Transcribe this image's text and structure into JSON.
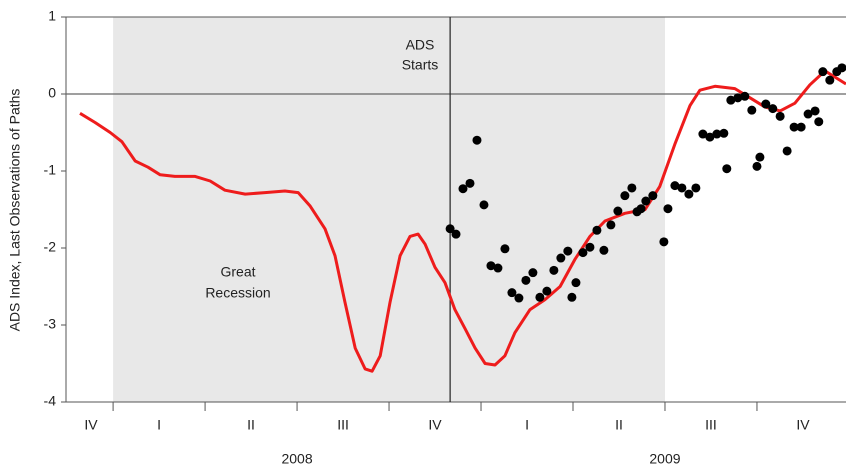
{
  "chart_data": {
    "type": "line",
    "y_label": "ADS Index, Last Observations of Paths",
    "annotations": [
      [
        "ADS",
        "Starts"
      ],
      [
        "Great",
        "Recession"
      ]
    ],
    "xlim": [
      2007.872,
      2009.992
    ],
    "ylim": [
      -4,
      1
    ],
    "yticks": [
      -4,
      -3,
      -2,
      -1,
      0,
      1
    ],
    "xticks": [
      2008,
      2008.25,
      2008.5,
      2008.75,
      2009,
      2009.25,
      2009.5,
      2009.75
    ],
    "quarters": [
      {
        "value": 2007.94,
        "label": "IV"
      },
      {
        "value": 2008.125,
        "label": "I"
      },
      {
        "value": 2008.375,
        "label": "II"
      },
      {
        "value": 2008.625,
        "label": "III"
      },
      {
        "value": 2008.875,
        "label": "IV"
      },
      {
        "value": 2009.125,
        "label": "I"
      },
      {
        "value": 2009.375,
        "label": "II"
      },
      {
        "value": 2009.625,
        "label": "III"
      },
      {
        "value": 2009.875,
        "label": "IV"
      }
    ],
    "years": [
      {
        "value": 2008.5,
        "label": "2008"
      },
      {
        "value": 2009.5,
        "label": "2009"
      }
    ],
    "recession": [
      2008.0,
      2009.5
    ],
    "recession_color": "#e8e8e8",
    "ads_start": 2008.916,
    "line": {
      "color": "#ee1c1c",
      "x": [
        2007.91,
        2007.951,
        2007.992,
        2008.024,
        2008.06,
        2008.095,
        2008.128,
        2008.168,
        2008.223,
        2008.264,
        2008.304,
        2008.359,
        2008.413,
        2008.467,
        2008.503,
        2008.535,
        2008.576,
        2008.603,
        2008.63,
        2008.658,
        2008.685,
        2008.704,
        2008.726,
        2008.753,
        2008.78,
        2008.807,
        2008.829,
        2008.848,
        2008.875,
        2008.902,
        2008.929,
        2008.957,
        2008.984,
        2009.011,
        2009.038,
        2009.065,
        2009.092,
        2009.133,
        2009.174,
        2009.215,
        2009.255,
        2009.296,
        2009.337,
        2009.391,
        2009.446,
        2009.486,
        2009.527,
        2009.568,
        2009.595,
        2009.636,
        2009.69,
        2009.731,
        2009.772,
        2009.813,
        2009.853,
        2009.894,
        2009.935,
        2009.962,
        2009.992
      ],
      "values": [
        -0.25,
        -0.37,
        -0.5,
        -0.62,
        -0.87,
        -0.95,
        -1.05,
        -1.07,
        -1.07,
        -1.13,
        -1.25,
        -1.3,
        -1.28,
        -1.26,
        -1.28,
        -1.45,
        -1.75,
        -2.1,
        -2.7,
        -3.3,
        -3.57,
        -3.6,
        -3.4,
        -2.7,
        -2.1,
        -1.85,
        -1.82,
        -1.95,
        -2.25,
        -2.45,
        -2.8,
        -3.05,
        -3.3,
        -3.5,
        -3.52,
        -3.4,
        -3.1,
        -2.8,
        -2.67,
        -2.5,
        -2.15,
        -1.85,
        -1.65,
        -1.55,
        -1.5,
        -1.2,
        -0.65,
        -0.15,
        0.05,
        0.1,
        0.07,
        -0.05,
        -0.17,
        -0.22,
        -0.12,
        0.12,
        0.3,
        0.22,
        0.13
      ]
    },
    "points": {
      "color": "#000000",
      "x": [
        2008.916,
        2008.932,
        2008.951,
        2008.97,
        2008.989,
        2009.008,
        2009.027,
        2009.046,
        2009.065,
        2009.084,
        2009.103,
        2009.122,
        2009.141,
        2009.16,
        2009.179,
        2009.198,
        2009.217,
        2009.236,
        2009.247,
        2009.258,
        2009.277,
        2009.296,
        2009.315,
        2009.334,
        2009.353,
        2009.372,
        2009.391,
        2009.41,
        2009.424,
        2009.435,
        2009.448,
        2009.467,
        2009.497,
        2009.508,
        2009.527,
        2009.546,
        2009.565,
        2009.584,
        2009.603,
        2009.622,
        2009.641,
        2009.66,
        2009.668,
        2009.679,
        2009.698,
        2009.717,
        2009.736,
        2009.75,
        2009.758,
        2009.774,
        2009.793,
        2009.813,
        2009.832,
        2009.851,
        2009.87,
        2009.889,
        2009.908,
        2009.918,
        2009.929,
        2009.948,
        2009.967,
        2009.981
      ],
      "values": [
        -1.75,
        -1.82,
        -1.23,
        -1.16,
        -0.6,
        -1.44,
        -2.23,
        -2.26,
        -2.01,
        -2.58,
        -2.65,
        -2.42,
        -2.32,
        -2.64,
        -2.56,
        -2.29,
        -2.13,
        -2.04,
        -2.64,
        -2.45,
        -2.06,
        -1.99,
        -1.77,
        -2.03,
        -1.7,
        -1.52,
        -1.32,
        -1.22,
        -1.53,
        -1.49,
        -1.39,
        -1.32,
        -1.92,
        -1.49,
        -1.19,
        -1.22,
        -1.3,
        -1.22,
        -0.52,
        -0.56,
        -0.52,
        -0.51,
        -0.97,
        -0.08,
        -0.05,
        -0.03,
        -0.21,
        -0.94,
        -0.82,
        -0.13,
        -0.19,
        -0.29,
        -0.74,
        -0.43,
        -0.43,
        -0.26,
        -0.22,
        -0.36,
        0.29,
        0.18,
        0.29,
        0.34
      ]
    }
  }
}
